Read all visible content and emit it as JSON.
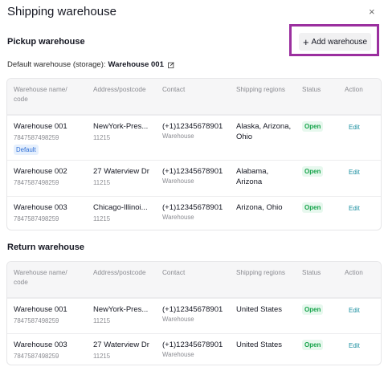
{
  "dialog": {
    "title": "Shipping warehouse",
    "close_glyph": "×"
  },
  "pickup": {
    "section_title": "Pickup warehouse",
    "add_button_label": "Add warehouse",
    "add_icon": "+",
    "default_label": "Default warehouse (storage):",
    "default_value": "Warehouse 001",
    "columns": [
      "Warehouse name/ code",
      "Address/postcode",
      "Contact",
      "Shipping regions",
      "Status",
      "Action"
    ],
    "rows": [
      {
        "name": "Warehouse 001",
        "code": "7847587498259",
        "tag": "Default",
        "address": "NewYork-Pres...",
        "postcode": "11215",
        "phone": "(+1)12345678901",
        "contact_type": "Warehouse",
        "regions": "Alaska, Arizona, Ohio",
        "status": "Open",
        "action": "Edit"
      },
      {
        "name": "Warehouse 002",
        "code": "7847587498259",
        "address": "27 Waterview Dr",
        "postcode": "11215",
        "phone": "(+1)12345678901",
        "contact_type": "Warehouse",
        "regions": "Alabama, Arizona",
        "status": "Open",
        "action": "Edit"
      },
      {
        "name": "Warehouse 003",
        "code": "7847587498259",
        "address": "Chicago-Illinoi...",
        "postcode": "11215",
        "phone": "(+1)12345678901",
        "contact_type": "Warehouse",
        "regions": "Arizona, Ohio",
        "status": "Open",
        "action": "Edit"
      }
    ]
  },
  "return": {
    "section_title": "Return warehouse",
    "columns": [
      "Warehouse name/ code",
      "Address/postcode",
      "Contact",
      "Shipping regions",
      "Status",
      "Action"
    ],
    "rows": [
      {
        "name": "Warehouse 001",
        "code": "7847587498259",
        "address": "NewYork-Pres...",
        "postcode": "11215",
        "phone": "(+1)12345678901",
        "contact_type": "Warehouse",
        "regions": "United States",
        "status": "Open",
        "action": "Edit"
      },
      {
        "name": "Warehouse 003",
        "code": "7847587498259",
        "address": "27 Waterview Dr",
        "postcode": "11215",
        "phone": "(+1)12345678901",
        "contact_type": "Warehouse",
        "regions": "United States",
        "status": "Open",
        "action": "Edit"
      }
    ]
  },
  "colors": {
    "status_open": "#16a34a",
    "edit_link": "#1a8fa0",
    "highlight_frame": "#9b2f9f"
  },
  "icons": {
    "close": "close-icon",
    "add": "plus-icon",
    "edit_default": "edit-icon"
  }
}
